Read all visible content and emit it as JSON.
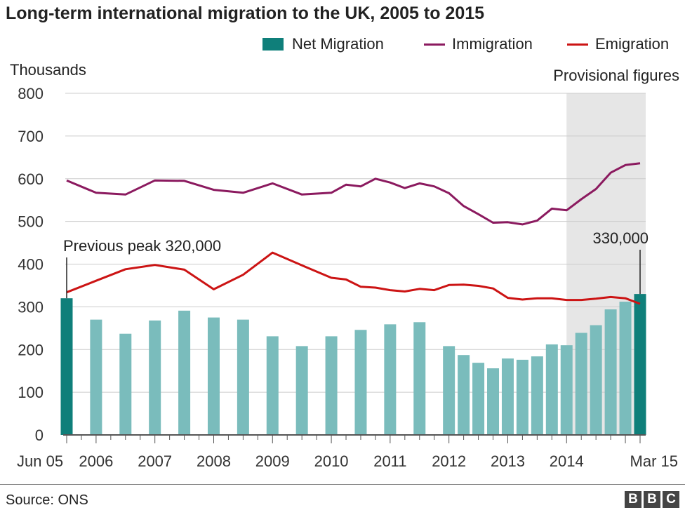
{
  "chart_data": {
    "type": "bar",
    "title": "Long-term international migration to the UK, 2005 to 2015",
    "ylabel": "Thousands",
    "ylim": [
      0,
      800
    ],
    "yticks": [
      0,
      100,
      200,
      300,
      400,
      500,
      600,
      700,
      800
    ],
    "xticks": [
      "Jun 05",
      "2006",
      "2007",
      "2008",
      "2009",
      "2010",
      "2011",
      "2012",
      "2013",
      "2014",
      "Mar 15"
    ],
    "grid": true,
    "legend_position": "top-right",
    "shaded_region": {
      "label": "Provisional figures",
      "from": 2014.0,
      "to": 2015.25
    },
    "annotations": [
      {
        "text": "Previous peak 320,000",
        "x": 2005.5,
        "y": 320
      },
      {
        "text": "330,000",
        "x": 2015.25,
        "y": 330
      }
    ],
    "series": [
      {
        "name": "Net Migration",
        "type": "bar",
        "color": "#7abcbc",
        "highlight_color": "#0f7f7a",
        "points": [
          {
            "x": 2005.5,
            "y": 320,
            "highlight": true
          },
          {
            "x": 2006.0,
            "y": 270
          },
          {
            "x": 2006.5,
            "y": 237
          },
          {
            "x": 2007.0,
            "y": 268
          },
          {
            "x": 2007.5,
            "y": 291
          },
          {
            "x": 2008.0,
            "y": 275
          },
          {
            "x": 2008.5,
            "y": 270
          },
          {
            "x": 2009.0,
            "y": 231
          },
          {
            "x": 2009.5,
            "y": 208
          },
          {
            "x": 2010.0,
            "y": 231
          },
          {
            "x": 2010.5,
            "y": 246
          },
          {
            "x": 2011.0,
            "y": 259
          },
          {
            "x": 2011.5,
            "y": 264
          },
          {
            "x": 2012.0,
            "y": 208
          },
          {
            "x": 2012.25,
            "y": 187
          },
          {
            "x": 2012.5,
            "y": 169
          },
          {
            "x": 2012.75,
            "y": 156
          },
          {
            "x": 2013.0,
            "y": 179
          },
          {
            "x": 2013.25,
            "y": 176
          },
          {
            "x": 2013.5,
            "y": 184
          },
          {
            "x": 2013.75,
            "y": 212
          },
          {
            "x": 2014.0,
            "y": 210
          },
          {
            "x": 2014.25,
            "y": 239
          },
          {
            "x": 2014.5,
            "y": 257
          },
          {
            "x": 2014.75,
            "y": 294
          },
          {
            "x": 2015.0,
            "y": 312
          },
          {
            "x": 2015.25,
            "y": 330,
            "highlight": true
          }
        ]
      },
      {
        "name": "Immigration",
        "type": "line",
        "color": "#8b1a5f",
        "points": [
          {
            "x": 2005.5,
            "y": 596
          },
          {
            "x": 2006.0,
            "y": 567
          },
          {
            "x": 2006.5,
            "y": 563
          },
          {
            "x": 2007.0,
            "y": 596
          },
          {
            "x": 2007.5,
            "y": 595
          },
          {
            "x": 2008.0,
            "y": 574
          },
          {
            "x": 2008.5,
            "y": 567
          },
          {
            "x": 2009.0,
            "y": 589
          },
          {
            "x": 2009.5,
            "y": 563
          },
          {
            "x": 2010.0,
            "y": 567
          },
          {
            "x": 2010.25,
            "y": 586
          },
          {
            "x": 2010.5,
            "y": 582
          },
          {
            "x": 2010.75,
            "y": 600
          },
          {
            "x": 2011.0,
            "y": 591
          },
          {
            "x": 2011.25,
            "y": 578
          },
          {
            "x": 2011.5,
            "y": 589
          },
          {
            "x": 2011.75,
            "y": 582
          },
          {
            "x": 2012.0,
            "y": 566
          },
          {
            "x": 2012.25,
            "y": 536
          },
          {
            "x": 2012.5,
            "y": 517
          },
          {
            "x": 2012.75,
            "y": 497
          },
          {
            "x": 2013.0,
            "y": 498
          },
          {
            "x": 2013.25,
            "y": 493
          },
          {
            "x": 2013.5,
            "y": 502
          },
          {
            "x": 2013.75,
            "y": 530
          },
          {
            "x": 2014.0,
            "y": 526
          },
          {
            "x": 2014.25,
            "y": 552
          },
          {
            "x": 2014.5,
            "y": 576
          },
          {
            "x": 2014.75,
            "y": 614
          },
          {
            "x": 2015.0,
            "y": 632
          },
          {
            "x": 2015.25,
            "y": 636
          }
        ]
      },
      {
        "name": "Emigration",
        "type": "line",
        "color": "#cc1414",
        "points": [
          {
            "x": 2005.5,
            "y": 334
          },
          {
            "x": 2006.0,
            "y": 361
          },
          {
            "x": 2006.5,
            "y": 388
          },
          {
            "x": 2007.0,
            "y": 398
          },
          {
            "x": 2007.5,
            "y": 387
          },
          {
            "x": 2008.0,
            "y": 341
          },
          {
            "x": 2008.5,
            "y": 375
          },
          {
            "x": 2009.0,
            "y": 427
          },
          {
            "x": 2009.5,
            "y": 397
          },
          {
            "x": 2010.0,
            "y": 368
          },
          {
            "x": 2010.25,
            "y": 364
          },
          {
            "x": 2010.5,
            "y": 347
          },
          {
            "x": 2010.75,
            "y": 345
          },
          {
            "x": 2011.0,
            "y": 339
          },
          {
            "x": 2011.25,
            "y": 336
          },
          {
            "x": 2011.5,
            "y": 342
          },
          {
            "x": 2011.75,
            "y": 339
          },
          {
            "x": 2012.0,
            "y": 351
          },
          {
            "x": 2012.25,
            "y": 352
          },
          {
            "x": 2012.5,
            "y": 349
          },
          {
            "x": 2012.75,
            "y": 343
          },
          {
            "x": 2013.0,
            "y": 321
          },
          {
            "x": 2013.25,
            "y": 317
          },
          {
            "x": 2013.5,
            "y": 320
          },
          {
            "x": 2013.75,
            "y": 320
          },
          {
            "x": 2014.0,
            "y": 316
          },
          {
            "x": 2014.25,
            "y": 316
          },
          {
            "x": 2014.5,
            "y": 319
          },
          {
            "x": 2014.75,
            "y": 323
          },
          {
            "x": 2015.0,
            "y": 320
          },
          {
            "x": 2015.25,
            "y": 307
          }
        ]
      }
    ]
  },
  "source": "Source: ONS",
  "logo": [
    "B",
    "B",
    "C"
  ]
}
